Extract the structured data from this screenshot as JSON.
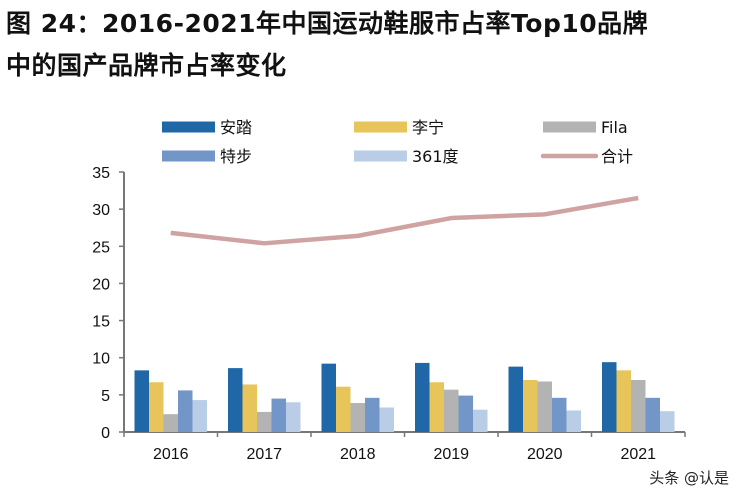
{
  "title_line1": "图 24：2016-2021年中国运动鞋服市占率Top10品牌",
  "title_line2": "中的国产品牌市占率变化",
  "watermark": "头条 @认是",
  "chart_data": {
    "type": "bar",
    "categories": [
      "2016",
      "2017",
      "2018",
      "2019",
      "2020",
      "2021"
    ],
    "ylim": [
      0,
      35
    ],
    "yticks": [
      0,
      5,
      10,
      15,
      20,
      25,
      30,
      35
    ],
    "grid": false,
    "legend_position": "top",
    "series": [
      {
        "name": "安踏",
        "kind": "bar",
        "color": "#1F67A6",
        "values": [
          8.3,
          8.6,
          9.2,
          9.3,
          8.8,
          9.4
        ]
      },
      {
        "name": "李宁",
        "kind": "bar",
        "color": "#E8C55A",
        "values": [
          6.7,
          6.4,
          6.1,
          6.7,
          7.0,
          8.3
        ]
      },
      {
        "name": "Fila",
        "kind": "bar",
        "color": "#B3B3B3",
        "values": [
          2.4,
          2.7,
          3.9,
          5.7,
          6.8,
          7.0
        ]
      },
      {
        "name": "特步",
        "kind": "bar",
        "color": "#7396C8",
        "values": [
          5.6,
          4.5,
          4.6,
          4.9,
          4.6,
          4.6
        ]
      },
      {
        "name": "361度",
        "kind": "bar",
        "color": "#B9CDE6",
        "values": [
          4.3,
          4.0,
          3.3,
          3.0,
          2.9,
          2.8
        ]
      },
      {
        "name": "合计",
        "kind": "line",
        "color": "#D0A3A3",
        "values": [
          26.8,
          25.4,
          26.4,
          28.8,
          29.3,
          31.5
        ]
      }
    ]
  }
}
